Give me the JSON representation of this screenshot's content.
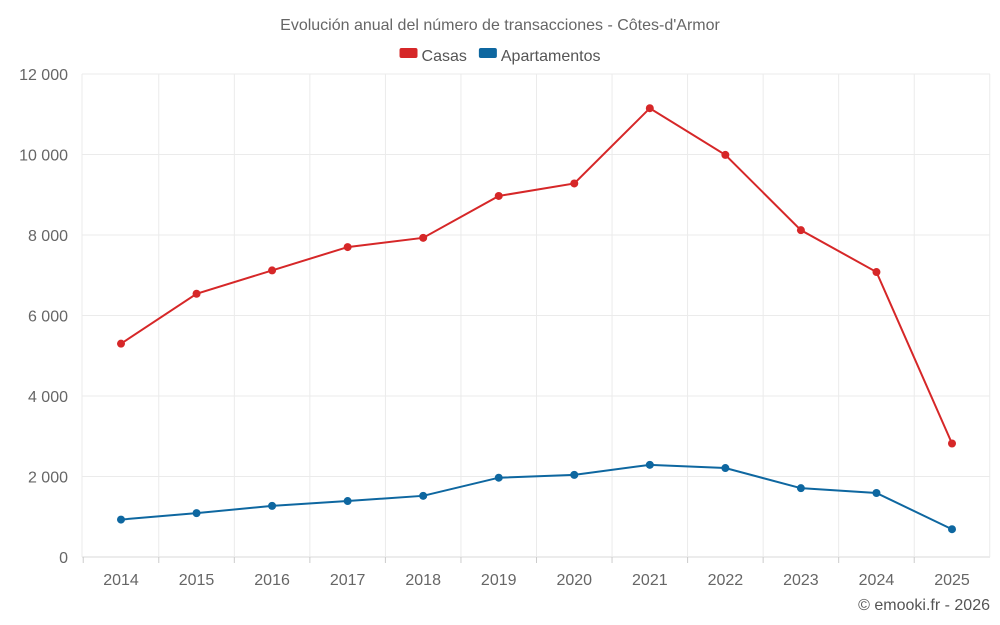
{
  "chart_data": {
    "type": "line",
    "title": "Evolución anual del número de transacciones - Côtes-d'Armor",
    "xlabel": "",
    "ylabel": "",
    "categories": [
      "2014",
      "2015",
      "2016",
      "2017",
      "2018",
      "2019",
      "2020",
      "2021",
      "2022",
      "2023",
      "2024",
      "2025"
    ],
    "ylim": [
      0,
      12000
    ],
    "yticks": [
      0,
      2000,
      4000,
      6000,
      8000,
      10000,
      12000
    ],
    "ytick_labels": [
      "0",
      "2 000",
      "4 000",
      "6 000",
      "8 000",
      "10 000",
      "12 000"
    ],
    "grid": true,
    "legend_position": "top-center",
    "series": [
      {
        "name": "Casas",
        "color": "#d62728",
        "values": [
          5300,
          6540,
          7120,
          7700,
          7930,
          8970,
          9280,
          11150,
          9990,
          8120,
          7080,
          2820
        ]
      },
      {
        "name": "Apartamentos",
        "color": "#0e67a0",
        "values": [
          930,
          1090,
          1270,
          1390,
          1520,
          1970,
          2040,
          2290,
          2210,
          1710,
          1590,
          690
        ]
      }
    ]
  },
  "credit": "© emooki.fr - 2026"
}
